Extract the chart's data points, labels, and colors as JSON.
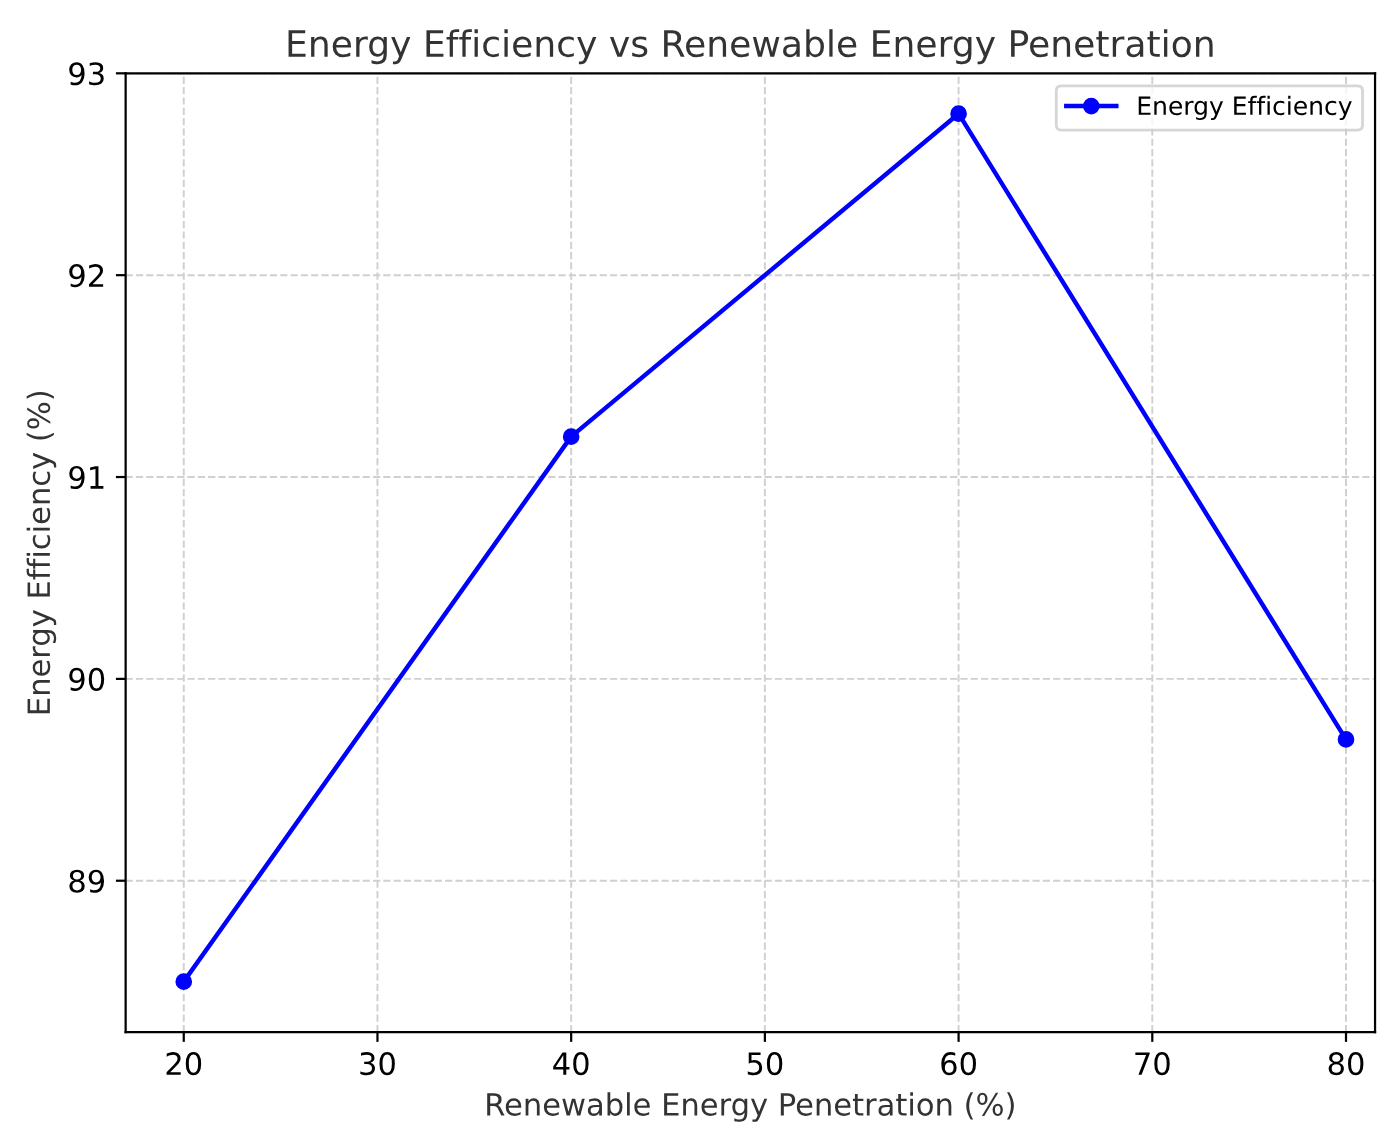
{
  "chart_data": {
    "type": "line",
    "title": "Energy Efficiency vs Renewable Energy Penetration",
    "xlabel": "Renewable Energy Penetration (%)",
    "ylabel": "Energy Efficiency (%)",
    "x": [
      20,
      40,
      60,
      80
    ],
    "series": [
      {
        "name": "Energy Efficiency",
        "color": "#0000ff",
        "values": [
          88.5,
          91.2,
          92.8,
          89.7
        ]
      }
    ],
    "xlim": [
      17,
      81.5
    ],
    "ylim": [
      88.25,
      93
    ],
    "xticks": [
      20,
      30,
      40,
      50,
      60,
      70,
      80
    ],
    "yticks": [
      89,
      90,
      91,
      92,
      93
    ],
    "grid": true,
    "legend": "top right",
    "marker": "circle",
    "line_style": "solid"
  }
}
